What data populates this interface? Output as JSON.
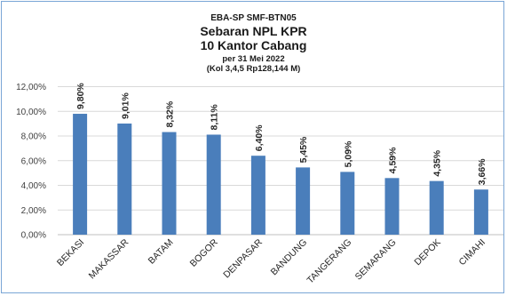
{
  "chart_data": {
    "type": "bar",
    "title": "Sebaran NPL KPR",
    "title_lines": [
      "EBA-SP SMF-BTN05",
      "Sebaran NPL KPR",
      "10 Kantor Cabang",
      "per 31 Mei 2022",
      "(Kol 3,4,5 Rp128,144 M)"
    ],
    "categories": [
      "BEKASI",
      "MAKASSAR",
      "BATAM",
      "BOGOR",
      "DENPASAR",
      "BANDUNG",
      "TANGERANG",
      "SEMARANG",
      "DEPOK",
      "CIMAHI"
    ],
    "values": [
      9.8,
      9.01,
      8.32,
      8.11,
      6.4,
      5.45,
      5.09,
      4.59,
      4.35,
      3.66
    ],
    "data_labels": [
      "9,80%",
      "9,01%",
      "8,32%",
      "8,11%",
      "6,40%",
      "5,45%",
      "5,09%",
      "4,59%",
      "4,35%",
      "3,66%"
    ],
    "ytick_values": [
      0,
      2,
      4,
      6,
      8,
      10,
      12
    ],
    "ytick_labels": [
      "0,00%",
      "2,00%",
      "4,00%",
      "6,00%",
      "8,00%",
      "10,00%",
      "12,00%"
    ],
    "ylim": [
      0,
      12
    ],
    "xlabel": "",
    "ylabel": "",
    "grid": true,
    "legend": "none",
    "colors": {
      "bar": "#4a7ebb",
      "grid": "#d9d9d9",
      "axis": "#bfbfbf",
      "border": "#7aa6d6"
    }
  }
}
